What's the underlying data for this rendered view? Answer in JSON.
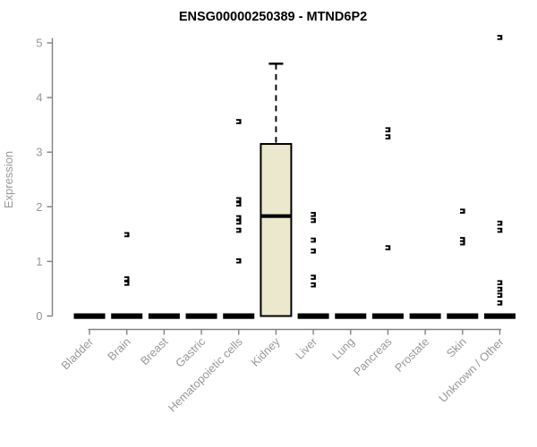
{
  "chart_data": {
    "type": "boxplot",
    "title": "ENSG00000250389 - MTND6P2",
    "ylabel": "Expression",
    "xlabel": "",
    "ylim": [
      0,
      5
    ],
    "yticks": [
      0,
      1,
      2,
      3,
      4,
      5
    ],
    "grid": false,
    "legend": null,
    "categories": [
      "Bladder",
      "Brain",
      "Breast",
      "Gastric",
      "Hematopoietic cells",
      "Kidney",
      "Liver",
      "Lung",
      "Pancreas",
      "Prostate",
      "Skin",
      "Unknown / Other"
    ],
    "boxes": [
      {
        "category": "Bladder",
        "q1": 0,
        "median": 0,
        "q3": 0,
        "whisker_low": 0,
        "whisker_high": 0,
        "outliers": []
      },
      {
        "category": "Brain",
        "q1": 0,
        "median": 0,
        "q3": 0,
        "whisker_low": 0,
        "whisker_high": 0,
        "outliers": [
          1.49,
          0.68,
          0.6
        ]
      },
      {
        "category": "Breast",
        "q1": 0,
        "median": 0,
        "q3": 0,
        "whisker_low": 0,
        "whisker_high": 0,
        "outliers": []
      },
      {
        "category": "Gastric",
        "q1": 0,
        "median": 0,
        "q3": 0,
        "whisker_low": 0,
        "whisker_high": 0,
        "outliers": []
      },
      {
        "category": "Hematopoietic cells",
        "q1": 0,
        "median": 0,
        "q3": 0,
        "whisker_low": 0,
        "whisker_high": 0,
        "outliers": [
          3.56,
          2.13,
          2.05,
          1.8,
          1.72,
          1.57,
          1.01
        ]
      },
      {
        "category": "Kidney",
        "q1": 0,
        "median": 1.83,
        "q3": 3.15,
        "whisker_low": 0,
        "whisker_high": 4.62,
        "outliers": []
      },
      {
        "category": "Liver",
        "q1": 0,
        "median": 0,
        "q3": 0,
        "whisker_low": 0,
        "whisker_high": 0,
        "outliers": [
          1.86,
          1.75,
          1.39,
          1.19,
          0.71,
          0.57
        ]
      },
      {
        "category": "Lung",
        "q1": 0,
        "median": 0,
        "q3": 0,
        "whisker_low": 0,
        "whisker_high": 0,
        "outliers": []
      },
      {
        "category": "Pancreas",
        "q1": 0,
        "median": 0,
        "q3": 0,
        "whisker_low": 0,
        "whisker_high": 0,
        "outliers": [
          3.41,
          3.28,
          1.25
        ]
      },
      {
        "category": "Prostate",
        "q1": 0,
        "median": 0,
        "q3": 0,
        "whisker_low": 0,
        "whisker_high": 0,
        "outliers": []
      },
      {
        "category": "Skin",
        "q1": 0,
        "median": 0,
        "q3": 0,
        "whisker_low": 0,
        "whisker_high": 0,
        "outliers": [
          1.92,
          1.4,
          1.34
        ]
      },
      {
        "category": "Unknown / Other",
        "q1": 0,
        "median": 0,
        "q3": 0,
        "whisker_low": 0,
        "whisker_high": 0,
        "outliers": [
          5.1,
          1.7,
          1.57,
          0.61,
          0.49,
          0.38,
          0.24
        ]
      }
    ],
    "colors": {
      "box_fill": "#ece8cd",
      "box_border": "#000000",
      "median": "#000000",
      "zero_bar": "#000000",
      "outlier": "#000000",
      "axis": "#818181",
      "tick_label": "#979797",
      "axis_label": "#999999",
      "title": "#000000",
      "background": "#ffffff"
    }
  }
}
